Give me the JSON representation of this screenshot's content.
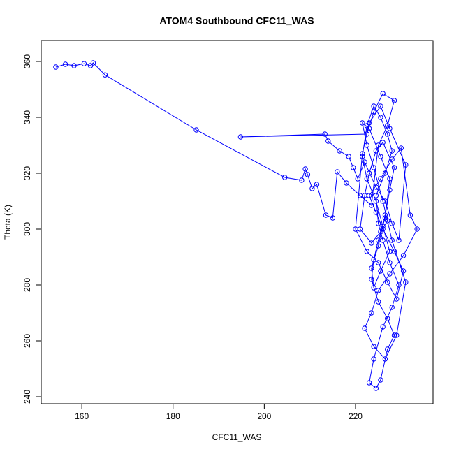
{
  "chart_data": {
    "type": "line",
    "markers": true,
    "title": "ATOM4 Southbound CFC11_WAS",
    "x_label": "CFC11_WAS",
    "y_label": "Theta (K)",
    "color": "#0000ff",
    "grid": false,
    "xlim": [
      151.1,
      237.0
    ],
    "ylim": [
      237.5,
      367.5
    ],
    "xticks": [
      160,
      180,
      200,
      220
    ],
    "yticks": [
      240,
      260,
      280,
      300,
      320,
      340,
      360
    ],
    "x": [
      154.3,
      156.4,
      158.3,
      160.5,
      161.9,
      162.5,
      165.1,
      185.1,
      204.5,
      208.2,
      209.0,
      209.5,
      210.5,
      211.5,
      213.5,
      215.0,
      216.0,
      218.0,
      221.0,
      223.5,
      225.0,
      227.0,
      228.5,
      226.0,
      224.0,
      222.5,
      194.8,
      213.3,
      214.0,
      216.5,
      218.5,
      219.5,
      220.5,
      222.0,
      224.5,
      226.5,
      228.0,
      229.5,
      231.0,
      227.5,
      225.5,
      223.0,
      221.5,
      220.0,
      222.5,
      225.0,
      227.0,
      229.0,
      230.5,
      228.5,
      226.0,
      224.5,
      223.0,
      225.5,
      228.0,
      230.0,
      232.0,
      233.5,
      230.5,
      227.5,
      225.0,
      223.5,
      222.0,
      224.0,
      226.5,
      229.0,
      231.0,
      228.0,
      226.0,
      224.0,
      222.5,
      221.5,
      223.0,
      225.5,
      227.5,
      226.5,
      225.0,
      224.0,
      223.5,
      225.0,
      227.0,
      228.5,
      227.0,
      225.5,
      224.5,
      223.0,
      224.0,
      226.0,
      228.0,
      229.5,
      227.5,
      226.0,
      225.0,
      224.5,
      226.5,
      228.0,
      227.0,
      225.5,
      224.0,
      222.5,
      221.5,
      222.5,
      224.5,
      226.0,
      227.5,
      225.5,
      224.0,
      223.5,
      225.0,
      226.5,
      227.5,
      228.5,
      226.0,
      224.5,
      223.0,
      222.0,
      221.0,
      223.5,
      225.5,
      227.0
    ],
    "values": [
      358.0,
      359.0,
      358.5,
      359.2,
      358.5,
      359.5,
      355.2,
      335.5,
      318.5,
      317.5,
      321.5,
      319.5,
      314.5,
      316.0,
      305.0,
      304.0,
      320.5,
      316.5,
      312.0,
      308.5,
      330.0,
      337.0,
      346.0,
      348.5,
      342.0,
      334.0,
      333.0,
      334.0,
      331.5,
      328.0,
      326.0,
      322.0,
      318.0,
      324.0,
      315.0,
      310.0,
      302.0,
      296.0,
      323.0,
      336.0,
      344.0,
      338.0,
      327.0,
      300.0,
      292.0,
      288.0,
      281.0,
      275.0,
      285.0,
      292.0,
      300.0,
      306.0,
      312.0,
      318.0,
      325.0,
      329.0,
      305.0,
      300.0,
      290.5,
      284.0,
      278.0,
      270.0,
      264.5,
      258.0,
      253.5,
      262.0,
      281.0,
      296.0,
      310.0,
      322.0,
      330.0,
      338.0,
      336.0,
      326.0,
      318.0,
      304.0,
      296.0,
      289.0,
      282.0,
      274.0,
      268.0,
      262.0,
      257.0,
      246.0,
      243.0,
      245.0,
      253.5,
      265.0,
      272.0,
      280.0,
      288.0,
      296.0,
      302.0,
      312.0,
      320.0,
      328.0,
      334.0,
      340.0,
      344.0,
      337.0,
      326.0,
      318.0,
      310.0,
      301.0,
      292.0,
      285.0,
      279.0,
      286.0,
      294.0,
      305.0,
      314.0,
      322.0,
      331.0,
      328.0,
      320.0,
      312.0,
      300.0,
      295.0,
      299.0,
      303.0
    ]
  }
}
